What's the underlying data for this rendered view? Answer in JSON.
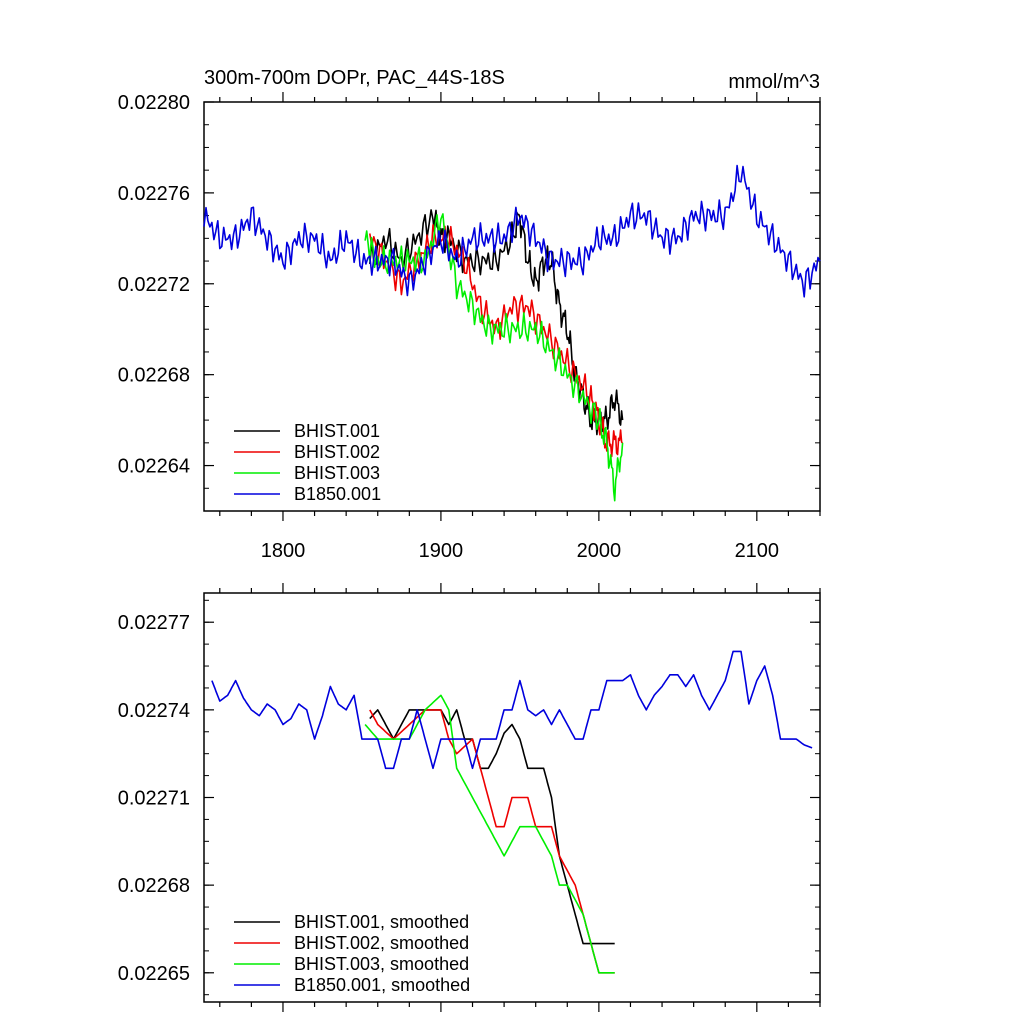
{
  "colors": {
    "BHIST.001": "#000000",
    "BHIST.002": "#ee0000",
    "BHIST.003": "#00ee00",
    "B1850.001": "#0000dd"
  },
  "chart_data": [
    {
      "type": "line",
      "title": "300m-700m DOPr, PAC_44S-18S",
      "units": "mmol/m^3",
      "xlim": [
        1750,
        2140
      ],
      "ylim": [
        0.02262,
        0.0228
      ],
      "yticks": [
        "0.02264",
        "0.02268",
        "0.02272",
        "0.02276",
        "0.02280"
      ],
      "xticks": [
        "1800",
        "1900",
        "2000",
        "2100"
      ],
      "legend_position": "bottom-left",
      "series": [
        {
          "name": "BHIST.001",
          "color": "#000000",
          "x": [
            1855,
            1865,
            1875,
            1885,
            1895,
            1900,
            1905,
            1915,
            1925,
            1935,
            1945,
            1950,
            1955,
            1960,
            1965,
            1970,
            1975,
            1980,
            1985,
            1990,
            1995,
            2000,
            2005,
            2010,
            2015
          ],
          "y": [
            0.02273,
            0.02274,
            0.02273,
            0.02274,
            0.02275,
            0.02274,
            0.02274,
            0.02273,
            0.02273,
            0.02273,
            0.02274,
            0.02275,
            0.02273,
            0.02272,
            0.02273,
            0.02273,
            0.02271,
            0.0227,
            0.02268,
            0.02267,
            0.02266,
            0.02266,
            0.02266,
            0.02267,
            0.02266
          ]
        },
        {
          "name": "BHIST.002",
          "color": "#ee0000",
          "x": [
            1855,
            1865,
            1875,
            1885,
            1895,
            1905,
            1915,
            1925,
            1935,
            1945,
            1955,
            1965,
            1975,
            1985,
            1995,
            2000,
            2005,
            2010,
            2015
          ],
          "y": [
            0.02274,
            0.02273,
            0.02272,
            0.02273,
            0.02274,
            0.02274,
            0.02273,
            0.02271,
            0.0227,
            0.02271,
            0.02271,
            0.0227,
            0.02269,
            0.02268,
            0.02267,
            0.02266,
            0.02265,
            0.02265,
            0.02265
          ]
        },
        {
          "name": "BHIST.003",
          "color": "#00ee00",
          "x": [
            1852,
            1860,
            1870,
            1880,
            1890,
            1900,
            1910,
            1920,
            1930,
            1940,
            1950,
            1960,
            1970,
            1980,
            1990,
            2000,
            2005,
            2010,
            2015
          ],
          "y": [
            0.02274,
            0.02273,
            0.02273,
            0.02273,
            0.02273,
            0.02275,
            0.02272,
            0.02271,
            0.0227,
            0.0227,
            0.0227,
            0.0227,
            0.02269,
            0.02268,
            0.02267,
            0.02266,
            0.02265,
            0.02263,
            0.02265
          ]
        },
        {
          "name": "B1850.001",
          "color": "#0000dd",
          "x": [
            1750,
            1760,
            1770,
            1780,
            1790,
            1800,
            1810,
            1820,
            1830,
            1840,
            1850,
            1860,
            1870,
            1880,
            1890,
            1900,
            1910,
            1920,
            1930,
            1940,
            1950,
            1960,
            1970,
            1980,
            1990,
            2000,
            2010,
            2020,
            2030,
            2040,
            2050,
            2060,
            2070,
            2080,
            2090,
            2100,
            2110,
            2120,
            2130,
            2140
          ],
          "y": [
            0.02275,
            0.02274,
            0.02274,
            0.02275,
            0.02274,
            0.02273,
            0.02274,
            0.02274,
            0.02273,
            0.02274,
            0.02273,
            0.02273,
            0.02273,
            0.02272,
            0.02273,
            0.02274,
            0.02273,
            0.02274,
            0.02274,
            0.02274,
            0.02275,
            0.02274,
            0.02273,
            0.02273,
            0.02273,
            0.02274,
            0.02274,
            0.02275,
            0.02275,
            0.02274,
            0.02274,
            0.02275,
            0.02275,
            0.02275,
            0.02277,
            0.02275,
            0.02274,
            0.02273,
            0.02272,
            0.02273
          ]
        }
      ]
    },
    {
      "type": "line",
      "xlim": [
        1750,
        2140
      ],
      "ylim": [
        0.02264,
        0.02278
      ],
      "yticks": [
        "0.02265",
        "0.02268",
        "0.02271",
        "0.02274",
        "0.02277"
      ],
      "legend_position": "bottom-left",
      "series": [
        {
          "name": "BHIST.001, smoothed",
          "color": "#000000",
          "x": [
            1855,
            1860,
            1865,
            1870,
            1880,
            1890,
            1895,
            1900,
            1905,
            1910,
            1915,
            1920,
            1925,
            1930,
            1935,
            1940,
            1945,
            1950,
            1955,
            1960,
            1965,
            1970,
            1975,
            1980,
            1985,
            1990,
            1995,
            2000,
            2005,
            2010
          ],
          "y": [
            0.022737,
            0.02274,
            0.022735,
            0.02273,
            0.02274,
            0.02274,
            0.02274,
            0.02274,
            0.022735,
            0.02274,
            0.02273,
            0.02273,
            0.02272,
            0.02272,
            0.022725,
            0.022732,
            0.022735,
            0.02273,
            0.02272,
            0.02272,
            0.02272,
            0.02271,
            0.02269,
            0.02268,
            0.02267,
            0.02266,
            0.02266,
            0.02266,
            0.02266,
            0.02266
          ]
        },
        {
          "name": "BHIST.002, smoothed",
          "color": "#ee0000",
          "x": [
            1855,
            1860,
            1870,
            1880,
            1890,
            1900,
            1905,
            1910,
            1920,
            1925,
            1930,
            1935,
            1940,
            1945,
            1950,
            1955,
            1960,
            1970,
            1975,
            1980,
            1985,
            1990,
            1995,
            2000,
            2005,
            2010
          ],
          "y": [
            0.02274,
            0.022735,
            0.02273,
            0.022735,
            0.02274,
            0.02274,
            0.02273,
            0.022725,
            0.02273,
            0.02272,
            0.02271,
            0.0227,
            0.0227,
            0.02271,
            0.02271,
            0.02271,
            0.0227,
            0.0227,
            0.02269,
            0.022685,
            0.02268,
            0.02267,
            0.02266,
            0.02265,
            0.02265,
            0.02265
          ]
        },
        {
          "name": "BHIST.003, smoothed",
          "color": "#00ee00",
          "x": [
            1852,
            1860,
            1870,
            1880,
            1890,
            1900,
            1905,
            1910,
            1920,
            1930,
            1940,
            1950,
            1955,
            1960,
            1970,
            1975,
            1980,
            1990,
            1995,
            2000,
            2005,
            2010
          ],
          "y": [
            0.022735,
            0.02273,
            0.02273,
            0.02273,
            0.02274,
            0.022745,
            0.02274,
            0.02272,
            0.02271,
            0.0227,
            0.02269,
            0.0227,
            0.0227,
            0.0227,
            0.02269,
            0.02268,
            0.02268,
            0.02267,
            0.02266,
            0.02265,
            0.02265,
            0.02265
          ]
        },
        {
          "name": "B1850.001, smoothed",
          "color": "#0000dd",
          "x": [
            1755,
            1760,
            1765,
            1770,
            1775,
            1780,
            1785,
            1790,
            1795,
            1800,
            1805,
            1810,
            1815,
            1820,
            1825,
            1830,
            1835,
            1840,
            1845,
            1850,
            1855,
            1860,
            1865,
            1870,
            1875,
            1880,
            1885,
            1890,
            1895,
            1900,
            1905,
            1910,
            1915,
            1920,
            1925,
            1930,
            1935,
            1940,
            1945,
            1950,
            1955,
            1960,
            1965,
            1970,
            1975,
            1980,
            1985,
            1990,
            1995,
            2000,
            2005,
            2010,
            2015,
            2020,
            2025,
            2030,
            2035,
            2040,
            2045,
            2050,
            2055,
            2060,
            2065,
            2070,
            2075,
            2080,
            2085,
            2090,
            2095,
            2100,
            2105,
            2110,
            2115,
            2120,
            2125,
            2130,
            2135
          ],
          "y": [
            0.02275,
            0.022743,
            0.022745,
            0.02275,
            0.022744,
            0.02274,
            0.022738,
            0.022742,
            0.02274,
            0.022735,
            0.022737,
            0.022742,
            0.02274,
            0.02273,
            0.022738,
            0.022748,
            0.022742,
            0.02274,
            0.022745,
            0.02273,
            0.02273,
            0.02273,
            0.02272,
            0.02272,
            0.02273,
            0.02273,
            0.02274,
            0.02273,
            0.02272,
            0.02273,
            0.02273,
            0.02273,
            0.02273,
            0.02272,
            0.02273,
            0.02273,
            0.02273,
            0.02274,
            0.02274,
            0.02275,
            0.02274,
            0.022738,
            0.02274,
            0.022735,
            0.02274,
            0.022735,
            0.02273,
            0.02273,
            0.02274,
            0.02274,
            0.02275,
            0.02275,
            0.02275,
            0.022752,
            0.022745,
            0.02274,
            0.022745,
            0.022748,
            0.022752,
            0.022752,
            0.022748,
            0.022752,
            0.022745,
            0.02274,
            0.022745,
            0.02275,
            0.02276,
            0.02276,
            0.022742,
            0.02275,
            0.022755,
            0.022745,
            0.02273,
            0.02273,
            0.02273,
            0.022728,
            0.022727
          ]
        }
      ]
    }
  ]
}
